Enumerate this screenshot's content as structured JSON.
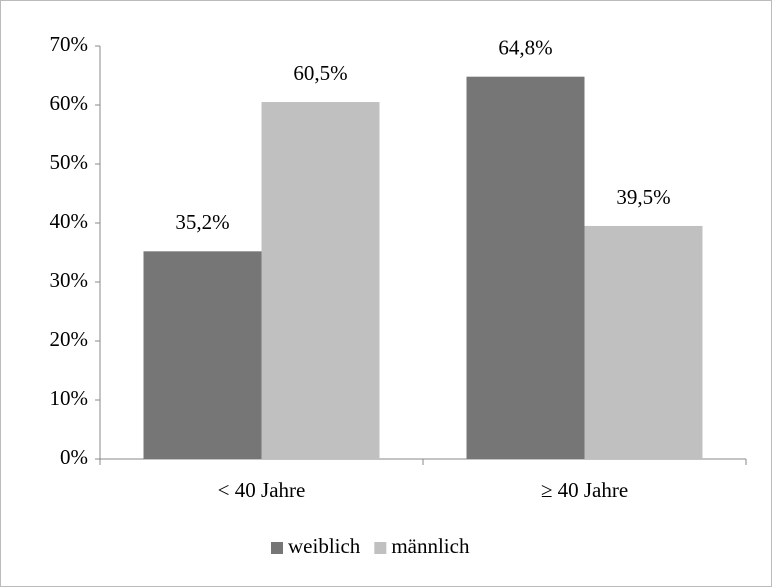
{
  "chart_data": {
    "type": "bar",
    "categories": [
      "< 40 Jahre",
      "≥ 40 Jahre"
    ],
    "series": [
      {
        "name": "weiblich",
        "color": "#767676",
        "values": [
          35.2,
          64.8
        ],
        "value_labels": [
          "35,2%",
          "64,8%"
        ]
      },
      {
        "name": "männlich",
        "color": "#c0c0c0",
        "values": [
          60.5,
          39.5
        ],
        "value_labels": [
          "60,5%",
          "39,5%"
        ]
      }
    ],
    "ylim": [
      0,
      70
    ],
    "yticks": [
      {
        "value": 0,
        "label": "0%"
      },
      {
        "value": 10,
        "label": "10%"
      },
      {
        "value": 20,
        "label": "20%"
      },
      {
        "value": 30,
        "label": "30%"
      },
      {
        "value": 40,
        "label": "40%"
      },
      {
        "value": 50,
        "label": "50%"
      },
      {
        "value": 60,
        "label": "60%"
      },
      {
        "value": 70,
        "label": "70%"
      }
    ],
    "legend": "bottom"
  }
}
